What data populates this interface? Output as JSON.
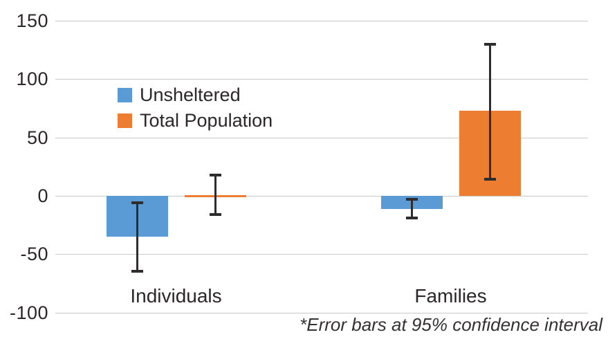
{
  "chart_data": {
    "type": "bar",
    "title": "",
    "xlabel": "",
    "ylabel": "",
    "categories": [
      "Individuals",
      "Families"
    ],
    "series": [
      {
        "name": "Unsheltered",
        "color": "#5b9bd5",
        "values": [
          -35,
          -11
        ],
        "error_low": [
          -66,
          -20
        ],
        "error_high": [
          -5,
          -2
        ]
      },
      {
        "name": "Total Population",
        "color": "#ed7d31",
        "values": [
          1,
          73
        ],
        "error_low": [
          -17,
          13
        ],
        "error_high": [
          19,
          131
        ]
      }
    ],
    "ylim": [
      -100,
      150
    ],
    "yticks": [
      150,
      100,
      50,
      0,
      -50,
      -100
    ],
    "grid": true,
    "legend_position": "top-left-inside",
    "footnote": "*Error bars at 95% confidence interval",
    "error_bar_note": "95% confidence interval"
  }
}
